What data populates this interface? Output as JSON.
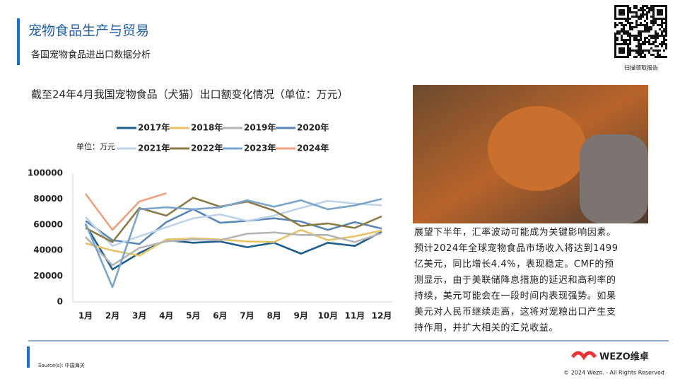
{
  "header": {
    "title": "宠物食品生产与贸易",
    "subtitle": "各国宠物食品进出口数据分析",
    "qr_caption": "扫描领取报告"
  },
  "chart_data": {
    "type": "line",
    "title": "截至24年4月我国宠物食品（犬猫）出口额变化情况（单位：万元）",
    "unit_label": "单位：万元",
    "categories": [
      "1月",
      "2月",
      "3月",
      "4月",
      "5月",
      "6月",
      "7月",
      "8月",
      "9月",
      "10月",
      "11月",
      "12月"
    ],
    "ylim": [
      0,
      100000
    ],
    "yticks": [
      0,
      20000,
      40000,
      60000,
      80000,
      100000
    ],
    "grid": false,
    "legend": "top",
    "series": [
      {
        "name": "2017年",
        "color": "#1f5f8b",
        "values": [
          60000,
          25300,
          38000,
          48000,
          46000,
          47000,
          42500,
          46000,
          37500,
          46000,
          43500,
          54500
        ]
      },
      {
        "name": "2018年",
        "color": "#e8c468",
        "values": [
          45500,
          40000,
          36000,
          48500,
          49500,
          48500,
          47000,
          46500,
          56000,
          48000,
          51000,
          55500
        ]
      },
      {
        "name": "2019年",
        "color": "#b5b5b5",
        "values": [
          50500,
          28500,
          42000,
          47000,
          48500,
          48000,
          53000,
          54000,
          52000,
          52000,
          46500,
          53500
        ]
      },
      {
        "name": "2020年",
        "color": "#5b87b5",
        "values": [
          63000,
          48000,
          45000,
          62000,
          72000,
          61500,
          63000,
          65000,
          62500,
          56000,
          62000,
          57000
        ]
      },
      {
        "name": "2021年",
        "color": "#bcd3ea",
        "values": [
          66000,
          43500,
          51000,
          58000,
          65000,
          68000,
          63000,
          67000,
          73000,
          78500,
          76500,
          75000
        ]
      },
      {
        "name": "2022年",
        "color": "#8c7a47",
        "values": [
          57500,
          46500,
          73000,
          67000,
          81000,
          74000,
          78000,
          71000,
          59000,
          61000,
          57500,
          66500
        ]
      },
      {
        "name": "2023年",
        "color": "#7ba5cc",
        "values": [
          61000,
          11500,
          72000,
          73500,
          72000,
          73500,
          79000,
          74000,
          79000,
          72000,
          75000,
          80000
        ]
      },
      {
        "name": "2024年",
        "color": "#f0a080",
        "values": [
          84000,
          56000,
          78000,
          84500,
          null,
          null,
          null,
          null,
          null,
          null,
          null,
          null
        ]
      }
    ]
  },
  "paragraph": [
    "展望下半年，汇率波动可能成为关键影响因素。",
    "预计2024年全球宠物食品市场收入将达到1499",
    "亿美元，同比增长4.4%，表现稳定。CMF的预",
    "测显示，由于美联储降息措施的延迟和高利率的",
    "持续，美元可能会在一段时间内表现强势。如果",
    "美元对人民币继续走高，这将对宠粮出口产生支",
    "持作用，并扩大相关的汇兑收益。"
  ],
  "footer": {
    "source": "Source(s): 中国海关",
    "brand": "WEZO维卓",
    "copyright": "© 2024 Wezo. - All Rights Reserved"
  }
}
